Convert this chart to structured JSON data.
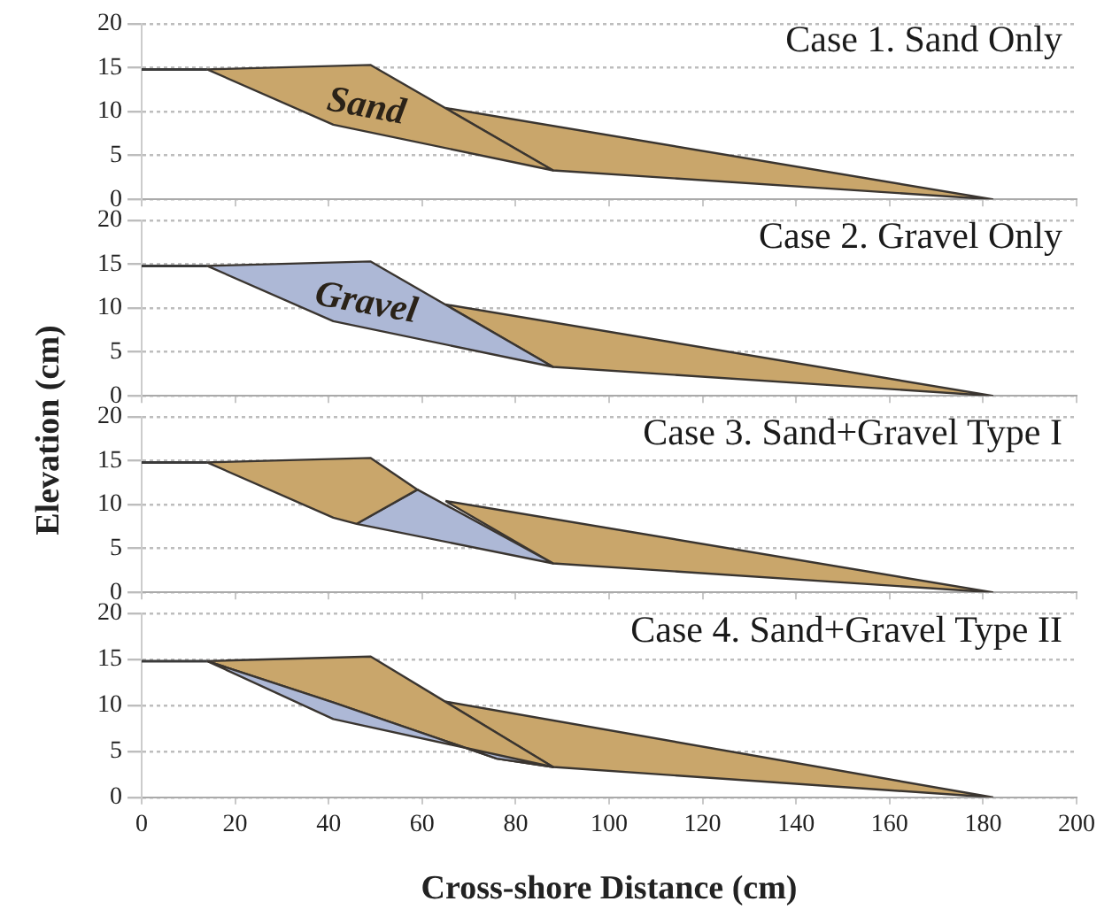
{
  "chart_data": [
    {
      "type": "area",
      "title": "Case 1. Sand Only",
      "ylabel": "Elevation (cm)",
      "xlim": [
        0,
        200
      ],
      "xticks": [
        0,
        20,
        40,
        60,
        80,
        100,
        120,
        140,
        160,
        180,
        200
      ],
      "ylim": [
        0,
        20
      ],
      "yticks": [
        0,
        5,
        10,
        15,
        20
      ],
      "grid": "y",
      "tick_labels": "y",
      "series": [
        {
          "type": "line",
          "color": "#3a3a3a",
          "x": [
            0,
            14
          ],
          "values": [
            14.8,
            14.8
          ]
        },
        {
          "name": "Sand",
          "color": "#c9a66b",
          "x": [
            14,
            49,
            88,
            41,
            14
          ],
          "values": [
            14.8,
            15.3,
            3.3,
            8.5,
            14.8
          ]
        },
        {
          "color": "#c9a66b",
          "x": [
            65,
            182,
            88,
            65
          ],
          "values": [
            10.4,
            0,
            3.3,
            10.4
          ]
        }
      ]
    },
    {
      "type": "area",
      "title": "Case 2. Gravel Only",
      "xlim": [
        0,
        200
      ],
      "xticks": [
        0,
        20,
        40,
        60,
        80,
        100,
        120,
        140,
        160,
        180,
        200
      ],
      "ylim": [
        0,
        20
      ],
      "yticks": [
        0,
        5,
        10,
        15,
        20
      ],
      "grid": "y",
      "tick_labels": "y",
      "series": [
        {
          "type": "line",
          "color": "#3a3a3a",
          "x": [
            0,
            14
          ],
          "values": [
            14.8,
            14.8
          ]
        },
        {
          "name": "Gravel",
          "color": "#adb8d6",
          "x": [
            14,
            49,
            88,
            41,
            14
          ],
          "values": [
            14.8,
            15.3,
            3.3,
            8.5,
            14.8
          ]
        },
        {
          "color": "#c9a66b",
          "x": [
            65,
            182,
            88,
            65
          ],
          "values": [
            10.4,
            0,
            3.3,
            10.4
          ]
        }
      ]
    },
    {
      "type": "area",
      "title": "Case 3. Sand+Gravel Type I",
      "xlim": [
        0,
        200
      ],
      "xticks": [
        0,
        20,
        40,
        60,
        80,
        100,
        120,
        140,
        160,
        180,
        200
      ],
      "ylim": [
        0,
        20
      ],
      "yticks": [
        0,
        5,
        10,
        15,
        20
      ],
      "grid": "y",
      "tick_labels": "y",
      "series": [
        {
          "type": "line",
          "color": "#3a3a3a",
          "x": [
            0,
            14
          ],
          "values": [
            14.8,
            14.8
          ]
        },
        {
          "color": "#c9a66b",
          "x": [
            14,
            49,
            59,
            46,
            41,
            14
          ],
          "values": [
            14.8,
            15.3,
            11.7,
            7.8,
            8.5,
            14.8
          ]
        },
        {
          "color": "#adb8d6",
          "x": [
            46,
            59,
            88,
            46
          ],
          "values": [
            7.8,
            11.7,
            3.3,
            7.8
          ]
        },
        {
          "color": "#c9a66b",
          "x": [
            65,
            182,
            88,
            65
          ],
          "values": [
            10.4,
            0,
            3.3,
            10.4
          ]
        }
      ]
    },
    {
      "type": "area",
      "title": "Case 4. Sand+Gravel Type II",
      "xlabel": "Cross-shore Distance (cm)",
      "xlim": [
        0,
        200
      ],
      "xticks": [
        0,
        20,
        40,
        60,
        80,
        100,
        120,
        140,
        160,
        180,
        200
      ],
      "ylim": [
        0,
        20
      ],
      "yticks": [
        0,
        5,
        10,
        15,
        20
      ],
      "grid": "y",
      "series": [
        {
          "type": "line",
          "color": "#3a3a3a",
          "x": [
            0,
            14
          ],
          "values": [
            14.8,
            14.8
          ]
        },
        {
          "color": "#adb8d6",
          "x": [
            14,
            41,
            76,
            88,
            41,
            14
          ],
          "values": [
            14.8,
            10.3,
            4.2,
            3.3,
            8.5,
            14.8
          ]
        },
        {
          "color": "#c9a66b",
          "x": [
            14,
            49,
            88,
            76,
            41,
            14
          ],
          "values": [
            14.8,
            15.3,
            3.3,
            4.2,
            10.3,
            14.8
          ]
        },
        {
          "color": "#c9a66b",
          "x": [
            65,
            182,
            88,
            65
          ],
          "values": [
            10.4,
            0,
            3.3,
            10.4
          ]
        }
      ]
    }
  ]
}
